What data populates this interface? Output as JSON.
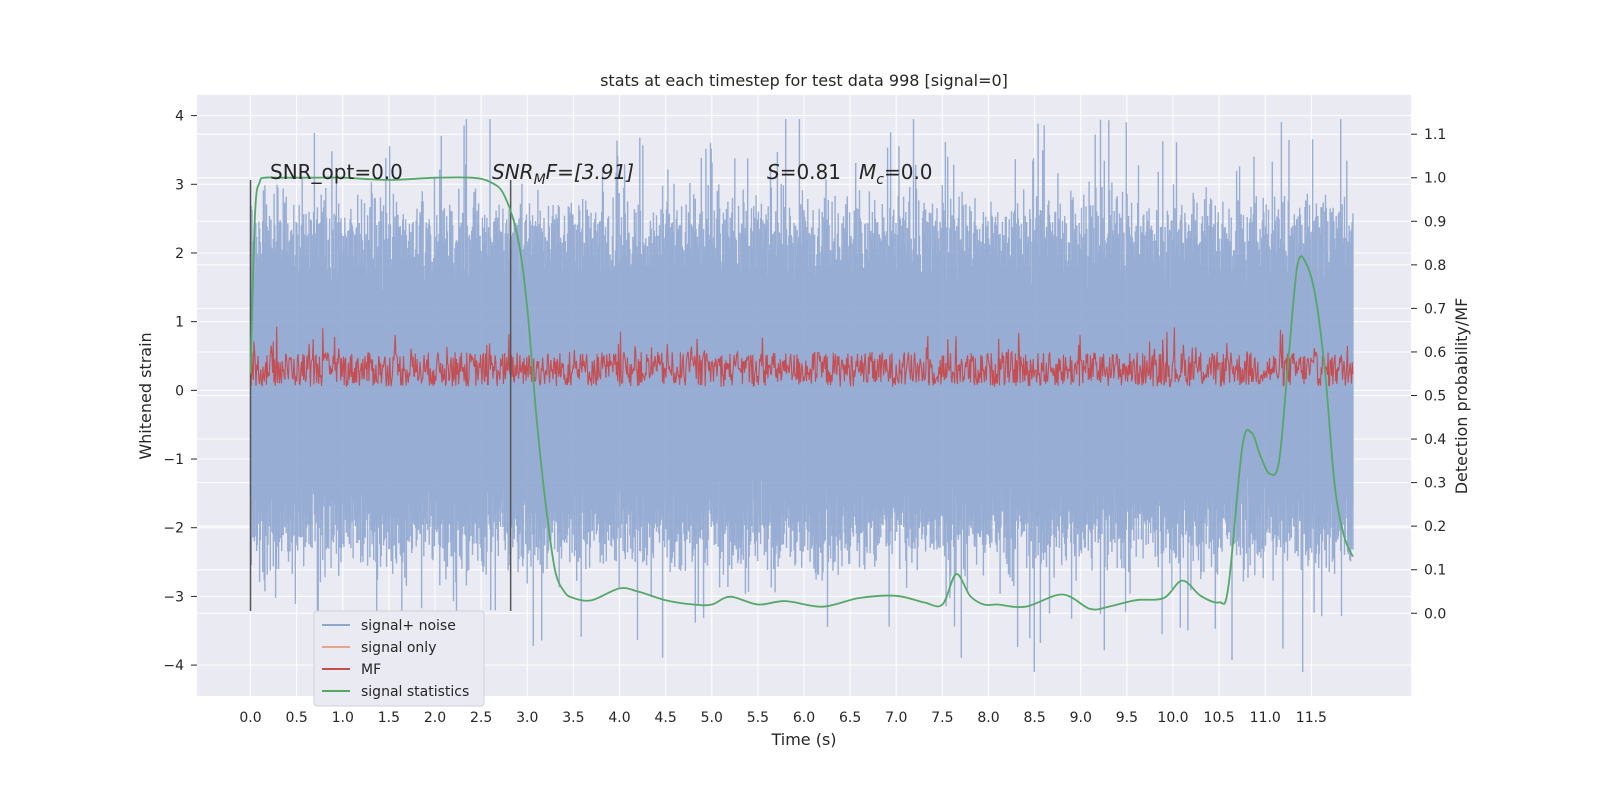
{
  "chart_data": {
    "type": "line",
    "title": "stats at each timestep for test data 998 [signal=0]",
    "xlabel": "Time (s)",
    "ylabel": "Whitened strain",
    "ylabel_right": "Detection probability/MF",
    "xlim": [
      -0.58,
      12.58
    ],
    "ylim": [
      -4.45,
      4.3
    ],
    "ylim_right": [
      -0.19,
      1.19
    ],
    "x_ticks": [
      "0.0",
      "0.5",
      "1.0",
      "1.5",
      "2.0",
      "2.5",
      "3.0",
      "3.5",
      "4.0",
      "4.5",
      "5.0",
      "5.5",
      "6.0",
      "6.5",
      "7.0",
      "7.5",
      "8.0",
      "8.5",
      "9.0",
      "9.5",
      "10.0",
      "10.5",
      "11.0",
      "11.5"
    ],
    "y_ticks_left": [
      "4",
      "3",
      "2",
      "1",
      "0",
      "−1",
      "−2",
      "−3",
      "−4"
    ],
    "y_ticks_right": [
      "1.1",
      "1.0",
      "0.9",
      "0.8",
      "0.7",
      "0.6",
      "0.5",
      "0.4",
      "0.3",
      "0.2",
      "0.1",
      "0.0"
    ],
    "grid": true,
    "legend_position": "lower-left",
    "annotations": {
      "snr_opt": "SNR_opt=0.0",
      "snr_mf_main": "SNR",
      "snr_mf_sub": "M",
      "snr_mf_rest": "F=[3.91]",
      "s_main": "S",
      "s_rest": "=0.81",
      "mc_main": "M",
      "mc_sub": "c",
      "mc_rest": "=0.0"
    },
    "vertical_lines_x": [
      0.0,
      2.82
    ],
    "series": [
      {
        "name": "signal+ noise",
        "color": "#8fa6cf",
        "axis": "left",
        "x_range": [
          0.0,
          11.95
        ],
        "typical_range": [
          -2.1,
          2.3
        ],
        "extremes": [
          -4.1,
          3.95
        ]
      },
      {
        "name": "signal only",
        "color": "#e8a38a",
        "axis": "left",
        "values": []
      },
      {
        "name": "MF",
        "color": "#c44e52",
        "axis": "right",
        "x_range": [
          0.0,
          11.95
        ],
        "typical_range": [
          0.52,
          0.6
        ],
        "extremes": [
          0.52,
          0.68
        ]
      },
      {
        "name": "signal statistics",
        "color": "#55a868",
        "axis": "right",
        "x": [
          0.0,
          0.05,
          0.1,
          0.15,
          0.3,
          0.6,
          1.0,
          1.5,
          2.0,
          2.4,
          2.6,
          2.75,
          2.9,
          3.0,
          3.1,
          3.2,
          3.3,
          3.4,
          3.5,
          3.7,
          4.0,
          4.2,
          4.5,
          4.8,
          5.0,
          5.2,
          5.5,
          5.8,
          6.2,
          6.6,
          7.0,
          7.3,
          7.5,
          7.65,
          7.8,
          7.95,
          8.1,
          8.4,
          8.8,
          9.1,
          9.3,
          9.6,
          9.9,
          10.1,
          10.3,
          10.5,
          10.6,
          10.75,
          10.85,
          10.95,
          11.05,
          11.15,
          11.25,
          11.35,
          11.45,
          11.55,
          11.65,
          11.75,
          11.85,
          11.95
        ],
        "values": [
          0.55,
          0.92,
          0.99,
          1.0,
          1.0,
          1.0,
          1.0,
          0.995,
          1.0,
          1.0,
          0.99,
          0.96,
          0.86,
          0.7,
          0.45,
          0.25,
          0.1,
          0.05,
          0.035,
          0.03,
          0.057,
          0.05,
          0.03,
          0.02,
          0.02,
          0.038,
          0.02,
          0.028,
          0.015,
          0.035,
          0.04,
          0.025,
          0.02,
          0.09,
          0.04,
          0.02,
          0.02,
          0.015,
          0.043,
          0.01,
          0.015,
          0.03,
          0.035,
          0.075,
          0.04,
          0.025,
          0.06,
          0.38,
          0.415,
          0.36,
          0.32,
          0.35,
          0.58,
          0.8,
          0.8,
          0.72,
          0.55,
          0.3,
          0.18,
          0.13
        ]
      }
    ]
  }
}
